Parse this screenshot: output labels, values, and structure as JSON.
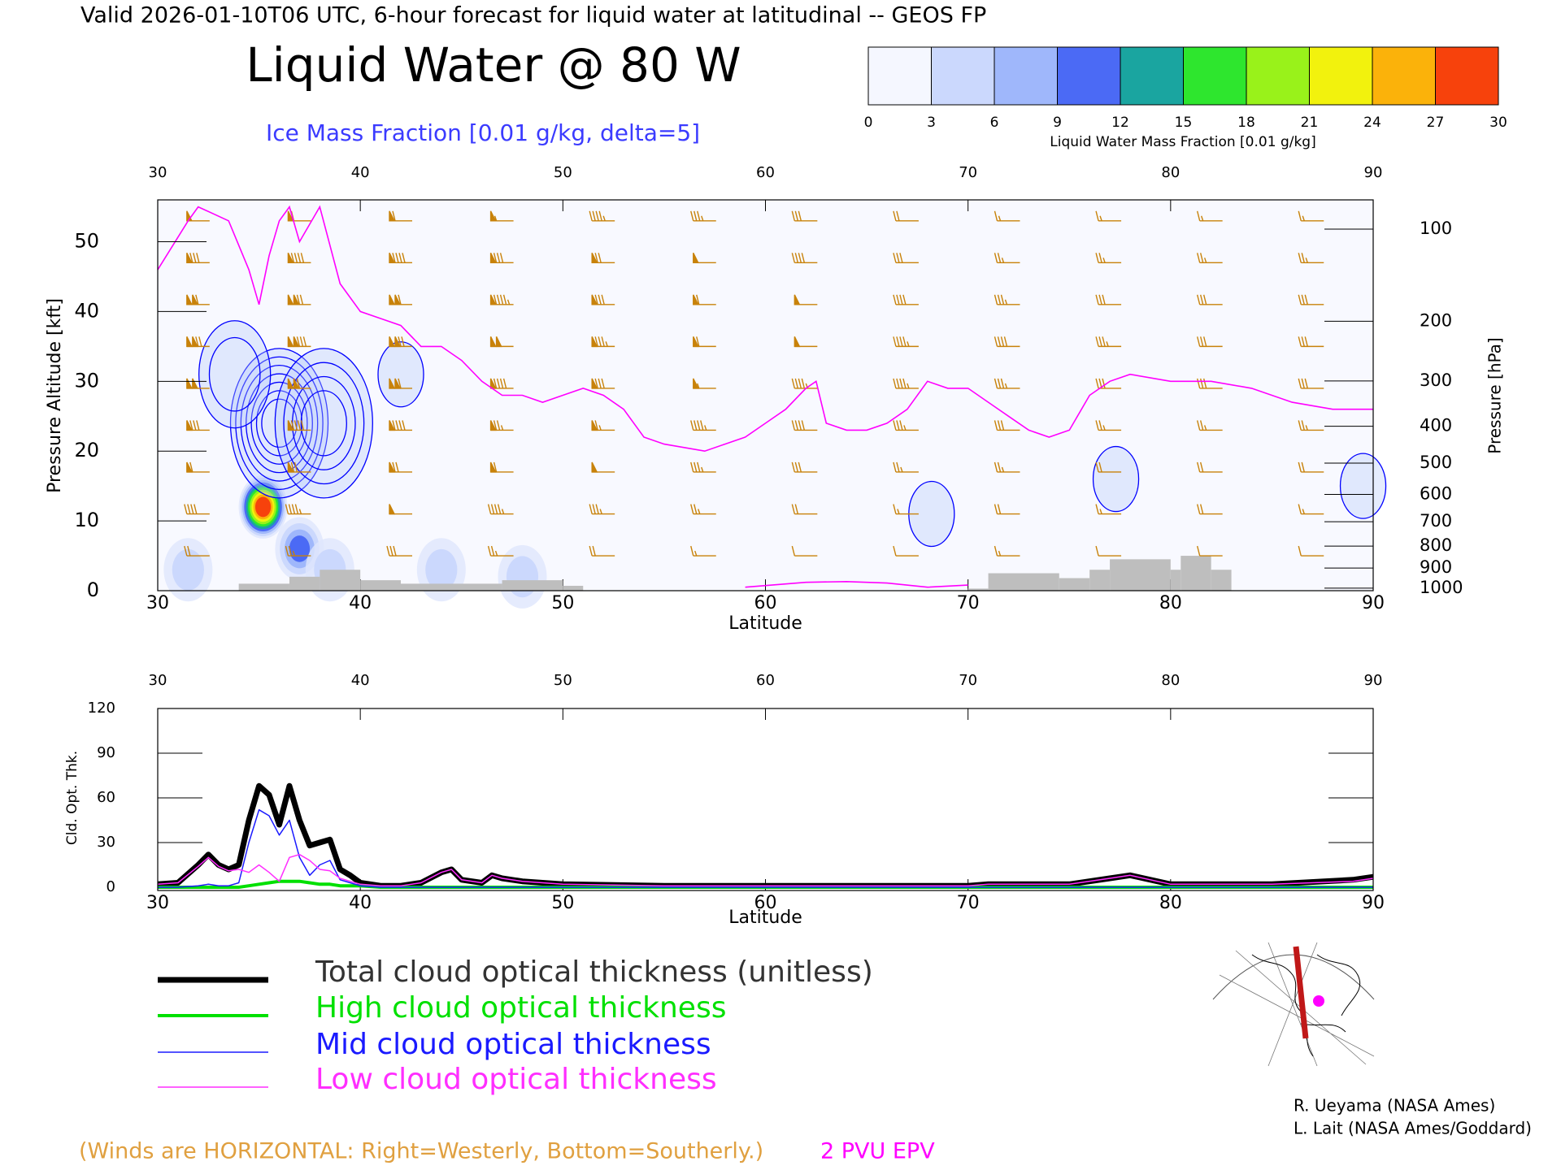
{
  "header": "Valid 2026-01-10T06 UTC, 6-hour forecast for liquid water at latitudinal -- GEOS FP",
  "title": "Liquid Water @ 80 W",
  "subtitle": "Ice Mass Fraction [0.01 g/kg, delta=5]",
  "colorbar": {
    "label": "Liquid Water Mass Fraction [0.01 g/kg]",
    "ticks": [
      0,
      3,
      6,
      9,
      12,
      15,
      18,
      21,
      24,
      27,
      30
    ],
    "colors": [
      "#f5f7ff",
      "#cbd8fd",
      "#9fb7fb",
      "#4b6af5",
      "#1aa5a0",
      "#2ee62e",
      "#99f21a",
      "#f2f20d",
      "#fbb20a",
      "#f7420c"
    ]
  },
  "chart_data": [
    {
      "type": "cross-section",
      "x_label": "Latitude",
      "y_label": "Pressure Altitude [kft]",
      "y2_label": "Pressure [hPa]",
      "xlim": [
        30,
        90
      ],
      "xticks": [
        30,
        40,
        50,
        60,
        70,
        80,
        90
      ],
      "ylim": [
        0,
        56
      ],
      "yticks": [
        0,
        10,
        20,
        30,
        40,
        50
      ],
      "y2ticks": [
        100,
        200,
        300,
        400,
        500,
        600,
        700,
        800,
        900,
        1000
      ],
      "y2scale": "standard-atmosphere",
      "epv": {
        "name": "2 PVU EPV",
        "color": "#ff00ff",
        "x": [
          30,
          31.5,
          32,
          33.5,
          34.5,
          35,
          35.5,
          36,
          36.5,
          37,
          38,
          39,
          40,
          41,
          42,
          43,
          44,
          45,
          46,
          47,
          48,
          49,
          50,
          51,
          52,
          53,
          54,
          55,
          57,
          58,
          59,
          60,
          61,
          62,
          62.5,
          63,
          64,
          65,
          66,
          67,
          68,
          69,
          70,
          71,
          72,
          73,
          74,
          75,
          76,
          77,
          78,
          80,
          82,
          84,
          86,
          88,
          90,
          null,
          59,
          62,
          64,
          66,
          68,
          70
        ],
        "y": [
          46,
          53,
          55,
          53,
          46,
          41,
          48,
          53,
          55,
          50,
          55,
          44,
          40,
          39,
          38,
          35,
          35,
          33,
          30,
          28,
          28,
          27,
          28,
          29,
          28,
          26,
          22,
          21,
          20,
          21,
          22,
          24,
          26,
          29,
          30,
          24,
          23,
          23,
          24,
          26,
          30,
          29,
          29,
          27,
          25,
          23,
          22,
          23,
          28,
          30,
          31,
          30,
          30,
          29,
          27,
          26,
          26,
          null,
          0.5,
          1.2,
          1.3,
          1.1,
          0.5,
          0.8
        ]
      },
      "terrain": {
        "color": "#bebebe",
        "bins": [
          34,
          36.5,
          38,
          40,
          42,
          47,
          50,
          51,
          70,
          71,
          74.5,
          76,
          77,
          80,
          80.5,
          82,
          83
        ],
        "heights": [
          1,
          2,
          3,
          1.5,
          1,
          1.5,
          0.7,
          0,
          0.3,
          2.5,
          1.8,
          3,
          4.5,
          3,
          5,
          3
        ]
      },
      "liquid_water": {
        "lat": [
          35.2,
          37,
          38.5,
          31.5,
          44,
          48
        ],
        "alt": [
          12,
          6,
          3,
          3,
          3,
          2
        ],
        "values": [
          30,
          10,
          4,
          3,
          5,
          4
        ]
      },
      "ice": {
        "color": "#0000ff",
        "delta": 5,
        "lat": [
          36,
          33.8,
          38.2,
          42,
          77.3,
          68.2,
          89.5
        ],
        "alt": [
          24,
          31,
          24,
          31,
          16,
          11,
          15
        ],
        "max": [
          35,
          10,
          20,
          5,
          5,
          5,
          5
        ]
      },
      "winds": {
        "note": "(Winds are HORIZONTAL: Right=Westerly, Bottom=Southerly.)",
        "color": "#c8820a",
        "lat": [
          32,
          37,
          42,
          47,
          52,
          57,
          62,
          67,
          72,
          77,
          82,
          87
        ],
        "alt": [
          5,
          11,
          17,
          23,
          29,
          35,
          41,
          47,
          53
        ],
        "speed": [
          [
            20,
            25,
            30,
            25,
            20,
            15,
            10,
            10,
            15,
            10,
            10,
            10
          ],
          [
            40,
            45,
            50,
            45,
            35,
            25,
            20,
            15,
            20,
            15,
            20,
            15
          ],
          [
            60,
            70,
            70,
            60,
            50,
            35,
            30,
            25,
            25,
            20,
            20,
            20
          ],
          [
            80,
            90,
            90,
            75,
            65,
            45,
            40,
            35,
            30,
            25,
            25,
            25
          ],
          [
            100,
            110,
            110,
            90,
            80,
            55,
            45,
            45,
            35,
            30,
            30,
            30
          ],
          [
            120,
            130,
            120,
            100,
            85,
            60,
            50,
            45,
            40,
            35,
            30,
            30
          ],
          [
            110,
            120,
            110,
            95,
            80,
            60,
            50,
            40,
            35,
            30,
            30,
            30
          ],
          [
            80,
            90,
            90,
            80,
            70,
            50,
            40,
            30,
            25,
            25,
            25,
            25
          ],
          [
            50,
            60,
            60,
            55,
            45,
            35,
            30,
            20,
            15,
            15,
            15,
            15
          ]
        ]
      }
    },
    {
      "type": "line",
      "x_label": "Latitude",
      "y_label": "Cld. Opt. Thk.",
      "xlim": [
        30,
        90
      ],
      "xticks": [
        30,
        40,
        50,
        60,
        70,
        80,
        90
      ],
      "ylim": [
        0,
        120
      ],
      "yticks": [
        0,
        30,
        60,
        90,
        120
      ],
      "x": [
        30,
        31,
        32,
        32.5,
        33,
        33.5,
        34,
        34.5,
        35,
        35.5,
        36,
        36.5,
        37,
        37.5,
        38,
        38.5,
        39,
        39.5,
        40,
        41,
        42,
        43,
        44,
        44.5,
        45,
        46,
        46.5,
        47,
        48,
        50,
        55,
        60,
        65,
        70,
        71,
        75,
        77,
        78,
        80,
        85,
        89,
        90
      ],
      "series": [
        {
          "name": "Total cloud optical thickness (unitless)",
          "color": "#000000",
          "width": 7,
          "values": [
            2,
            3,
            15,
            22,
            15,
            12,
            15,
            45,
            68,
            62,
            42,
            68,
            45,
            28,
            30,
            32,
            12,
            8,
            3,
            1,
            1,
            3,
            10,
            12,
            5,
            3,
            8,
            6,
            4,
            2,
            1,
            1,
            1,
            1,
            2,
            2,
            6,
            8,
            2,
            2,
            5,
            7
          ]
        },
        {
          "name": "High cloud optical thickness",
          "color": "#00e000",
          "width": 4,
          "values": [
            0,
            0,
            0,
            0,
            0,
            0,
            0,
            1,
            2,
            3,
            4,
            4,
            4,
            3,
            2,
            2,
            1,
            1,
            1,
            0,
            0,
            0,
            0,
            0,
            0,
            0,
            0,
            0,
            0,
            0,
            0,
            0,
            0,
            0,
            0,
            0,
            0,
            0,
            0,
            0,
            0,
            0
          ]
        },
        {
          "name": "Mid cloud optical thickness",
          "color": "#1a1aff",
          "width": 1.5,
          "values": [
            0,
            0,
            1,
            2,
            1,
            1,
            3,
            30,
            52,
            48,
            35,
            45,
            20,
            8,
            15,
            18,
            5,
            3,
            1,
            0,
            0,
            0,
            0,
            0,
            0,
            0,
            0,
            0,
            0,
            0,
            0,
            0,
            0,
            0,
            0,
            0,
            0,
            0,
            0,
            0,
            0,
            0
          ]
        },
        {
          "name": "Low cloud optical thickness",
          "color": "#ff2eff",
          "width": 1.5,
          "values": [
            2,
            3,
            14,
            20,
            14,
            11,
            12,
            10,
            15,
            10,
            4,
            20,
            22,
            18,
            12,
            11,
            6,
            4,
            2,
            1,
            1,
            3,
            10,
            12,
            5,
            3,
            8,
            6,
            4,
            2,
            1,
            1,
            1,
            1,
            2,
            2,
            6,
            8,
            2,
            2,
            4,
            6
          ]
        }
      ]
    }
  ],
  "credits": [
    "R. Ueyama (NASA Ames)",
    "L. Lait (NASA Ames/Goddard)"
  ]
}
